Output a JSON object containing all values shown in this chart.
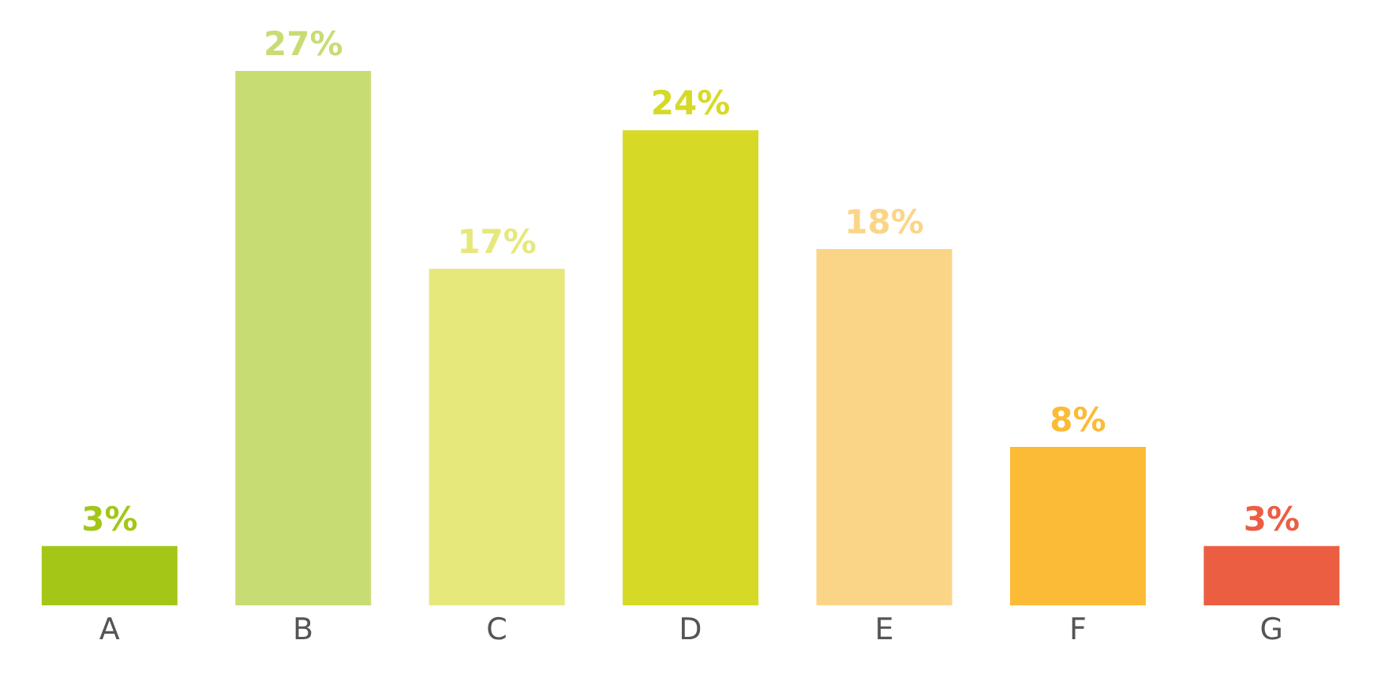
{
  "chart_data": {
    "type": "bar",
    "categories": [
      "A",
      "B",
      "C",
      "D",
      "E",
      "F",
      "G"
    ],
    "values": [
      3,
      27,
      17,
      24,
      18,
      8,
      3
    ],
    "value_labels": [
      "3%",
      "27%",
      "17%",
      "24%",
      "18%",
      "8%",
      "3%"
    ],
    "colors": [
      "#a3c617",
      "#c8dc74",
      "#e6e87c",
      "#d6da26",
      "#fbd587",
      "#fbbb36",
      "#eb5e42"
    ],
    "grid": false,
    "legend": false
  }
}
